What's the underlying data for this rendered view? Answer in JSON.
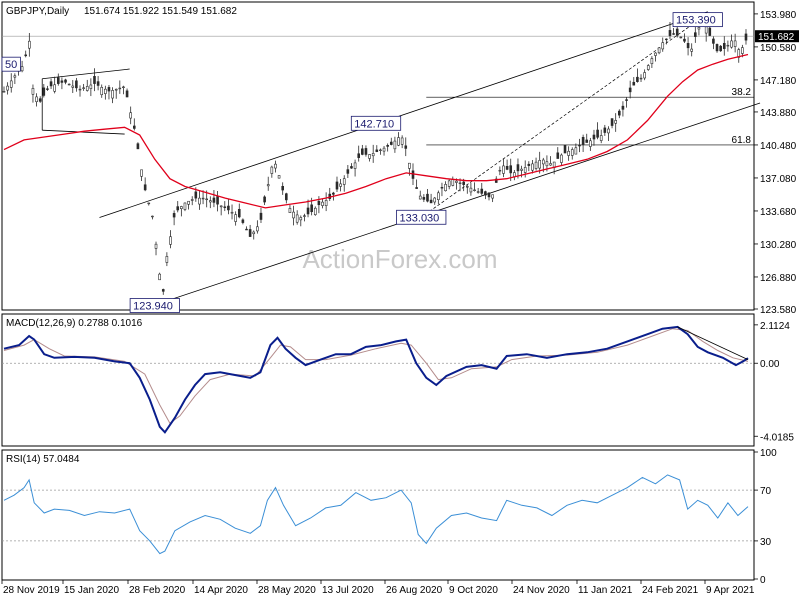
{
  "header": {
    "symbol": "GBPJPY,Daily",
    "ohlc": "151.674 151.922 151.549 151.682"
  },
  "watermark": "ActionForex.com",
  "colors": {
    "candle": "#2a2a2a",
    "sma": "#e0001b",
    "macd": "#0a1e8c",
    "signal": "#b48c8c",
    "rsi": "#3b8fd6",
    "grid": "#999999"
  },
  "chart_data": [
    {
      "type": "candlestick",
      "panel": "price",
      "ylim": [
        123.58,
        155.0
      ],
      "y_ticks": [
        "153.980",
        "150.580",
        "147.180",
        "143.880",
        "140.480",
        "137.080",
        "133.680",
        "130.280",
        "126.880",
        "123.580"
      ],
      "y_tick_values": [
        153.98,
        150.58,
        147.18,
        143.88,
        140.48,
        137.08,
        133.68,
        130.28,
        126.88,
        123.58
      ],
      "x_ticks": [
        "28 Nov 2019",
        "15 Jan 2020",
        "28 Feb 2020",
        "14 Apr 2020",
        "28 May 2020",
        "13 Jul 2020",
        "26 Aug 2020",
        "9 Oct 2020",
        "24 Nov 2020",
        "11 Jan 2021",
        "24 Feb 2021",
        "9 Apr 2021"
      ],
      "last_price": "151.682",
      "last_price_value": 151.682,
      "close_path": [
        [
          0,
          146.0
        ],
        [
          10,
          147.5
        ],
        [
          20,
          148.8
        ],
        [
          25,
          151.5
        ],
        [
          28,
          146.5
        ],
        [
          35,
          144.8
        ],
        [
          45,
          146.5
        ],
        [
          60,
          147.0
        ],
        [
          75,
          146.2
        ],
        [
          90,
          146.8
        ],
        [
          105,
          146.0
        ],
        [
          120,
          146.5
        ],
        [
          130,
          142.0
        ],
        [
          140,
          136.0
        ],
        [
          148,
          133.0
        ],
        [
          155,
          127.0
        ],
        [
          158,
          125.0
        ],
        [
          162,
          129.0
        ],
        [
          170,
          133.5
        ],
        [
          180,
          134.5
        ],
        [
          190,
          135.0
        ],
        [
          200,
          135.0
        ],
        [
          210,
          134.5
        ],
        [
          220,
          134.0
        ],
        [
          235,
          133.0
        ],
        [
          245,
          131.0
        ],
        [
          255,
          132.5
        ],
        [
          262,
          136.0
        ],
        [
          268,
          139.0
        ],
        [
          272,
          138.0
        ],
        [
          278,
          135.5
        ],
        [
          285,
          133.8
        ],
        [
          295,
          133.0
        ],
        [
          305,
          133.5
        ],
        [
          315,
          134.5
        ],
        [
          325,
          135.0
        ],
        [
          335,
          136.5
        ],
        [
          345,
          138.0
        ],
        [
          355,
          139.5
        ],
        [
          365,
          139.5
        ],
        [
          375,
          140.0
        ],
        [
          385,
          140.5
        ],
        [
          395,
          141.5
        ],
        [
          400,
          140.0
        ],
        [
          408,
          136.5
        ],
        [
          415,
          135.0
        ],
        [
          425,
          134.5
        ],
        [
          435,
          136.0
        ],
        [
          445,
          137.0
        ],
        [
          455,
          136.5
        ],
        [
          465,
          136.0
        ],
        [
          475,
          135.5
        ],
        [
          485,
          135.0
        ],
        [
          495,
          138.5
        ],
        [
          505,
          137.5
        ],
        [
          515,
          138.0
        ],
        [
          525,
          138.5
        ],
        [
          535,
          139.0
        ],
        [
          545,
          138.5
        ],
        [
          555,
          139.5
        ],
        [
          565,
          140.0
        ],
        [
          575,
          140.5
        ],
        [
          585,
          141.0
        ],
        [
          595,
          141.5
        ],
        [
          605,
          142.5
        ],
        [
          615,
          144.0
        ],
        [
          625,
          146.5
        ],
        [
          635,
          147.5
        ],
        [
          645,
          149.5
        ],
        [
          655,
          151.0
        ],
        [
          665,
          152.0
        ],
        [
          675,
          151.5
        ],
        [
          683,
          150.0
        ],
        [
          690,
          152.5
        ],
        [
          697,
          153.0
        ],
        [
          703,
          151.5
        ],
        [
          710,
          150.0
        ],
        [
          718,
          150.5
        ],
        [
          726,
          151.5
        ],
        [
          732,
          150.0
        ],
        [
          740,
          151.7
        ]
      ],
      "sma_path": [
        [
          0,
          140.0
        ],
        [
          20,
          141.0
        ],
        [
          40,
          141.3
        ],
        [
          60,
          141.6
        ],
        [
          80,
          141.9
        ],
        [
          100,
          142.1
        ],
        [
          120,
          142.3
        ],
        [
          135,
          141.5
        ],
        [
          150,
          139.0
        ],
        [
          165,
          137.0
        ],
        [
          180,
          136.2
        ],
        [
          200,
          135.6
        ],
        [
          220,
          135.0
        ],
        [
          240,
          134.5
        ],
        [
          260,
          134.0
        ],
        [
          280,
          134.3
        ],
        [
          300,
          134.6
        ],
        [
          320,
          135.0
        ],
        [
          340,
          135.5
        ],
        [
          360,
          136.2
        ],
        [
          380,
          137.0
        ],
        [
          400,
          137.6
        ],
        [
          420,
          137.3
        ],
        [
          440,
          137.0
        ],
        [
          460,
          136.8
        ],
        [
          480,
          136.8
        ],
        [
          500,
          137.0
        ],
        [
          520,
          137.5
        ],
        [
          540,
          138.0
        ],
        [
          560,
          138.5
        ],
        [
          580,
          139.0
        ],
        [
          600,
          139.8
        ],
        [
          620,
          141.0
        ],
        [
          640,
          143.0
        ],
        [
          660,
          145.5
        ],
        [
          675,
          147.0
        ],
        [
          690,
          148.2
        ],
        [
          705,
          148.8
        ],
        [
          720,
          149.3
        ],
        [
          740,
          149.8
        ]
      ],
      "labels": [
        {
          "text": "50",
          "x": 0,
          "y": 148.8
        },
        {
          "text": "142.710",
          "x": 370,
          "y": 142.71
        },
        {
          "text": "133.030",
          "x": 415,
          "y": 133.03
        },
        {
          "text": "123.940",
          "x": 150,
          "y": 123.94
        },
        {
          "text": "153.390",
          "x": 690,
          "y": 153.39
        }
      ],
      "fib_levels": [
        {
          "label": "38.2",
          "value": 145.4
        },
        {
          "label": "61.8",
          "value": 140.48
        }
      ]
    },
    {
      "type": "line",
      "panel": "macd",
      "title": "MACD(12,26,9) 0.2788 0.1016",
      "ylim": [
        -4.5,
        2.6
      ],
      "y_ticks": [
        "2.1124",
        "0.00",
        "-4.0185"
      ],
      "y_tick_values": [
        2.1124,
        0.0,
        -4.0185
      ],
      "series": [
        {
          "role": "macd",
          "points": [
            [
              0,
              0.8
            ],
            [
              15,
              1.0
            ],
            [
              25,
              1.5
            ],
            [
              30,
              1.3
            ],
            [
              40,
              0.5
            ],
            [
              50,
              0.3
            ],
            [
              70,
              0.35
            ],
            [
              90,
              0.3
            ],
            [
              110,
              0.1
            ],
            [
              125,
              0.0
            ],
            [
              135,
              -0.8
            ],
            [
              145,
              -2.0
            ],
            [
              155,
              -3.5
            ],
            [
              160,
              -3.8
            ],
            [
              170,
              -3.0
            ],
            [
              180,
              -2.0
            ],
            [
              190,
              -1.2
            ],
            [
              200,
              -0.6
            ],
            [
              215,
              -0.5
            ],
            [
              225,
              -0.6
            ],
            [
              245,
              -0.8
            ],
            [
              255,
              -0.5
            ],
            [
              265,
              1.0
            ],
            [
              272,
              1.4
            ],
            [
              280,
              0.8
            ],
            [
              290,
              0.3
            ],
            [
              300,
              -0.1
            ],
            [
              315,
              0.2
            ],
            [
              330,
              0.5
            ],
            [
              345,
              0.5
            ],
            [
              360,
              0.9
            ],
            [
              375,
              1.0
            ],
            [
              390,
              1.2
            ],
            [
              400,
              1.3
            ],
            [
              410,
              0.0
            ],
            [
              420,
              -0.8
            ],
            [
              430,
              -1.2
            ],
            [
              440,
              -0.7
            ],
            [
              460,
              -0.2
            ],
            [
              475,
              -0.1
            ],
            [
              490,
              -0.3
            ],
            [
              500,
              0.4
            ],
            [
              520,
              0.5
            ],
            [
              540,
              0.3
            ],
            [
              560,
              0.5
            ],
            [
              580,
              0.6
            ],
            [
              600,
              0.8
            ],
            [
              620,
              1.2
            ],
            [
              640,
              1.6
            ],
            [
              655,
              1.9
            ],
            [
              670,
              2.0
            ],
            [
              680,
              1.6
            ],
            [
              690,
              0.9
            ],
            [
              700,
              0.6
            ],
            [
              715,
              0.3
            ],
            [
              728,
              -0.1
            ],
            [
              735,
              0.1
            ],
            [
              740,
              0.28
            ]
          ]
        },
        {
          "role": "signal",
          "points": [
            [
              0,
              0.7
            ],
            [
              20,
              1.0
            ],
            [
              30,
              1.3
            ],
            [
              45,
              0.8
            ],
            [
              60,
              0.4
            ],
            [
              90,
              0.35
            ],
            [
              120,
              0.1
            ],
            [
              140,
              -0.6
            ],
            [
              155,
              -2.3
            ],
            [
              165,
              -3.3
            ],
            [
              175,
              -2.9
            ],
            [
              190,
              -1.8
            ],
            [
              205,
              -0.9
            ],
            [
              225,
              -0.6
            ],
            [
              250,
              -0.7
            ],
            [
              265,
              0.3
            ],
            [
              275,
              1.0
            ],
            [
              285,
              0.9
            ],
            [
              300,
              0.2
            ],
            [
              320,
              0.2
            ],
            [
              345,
              0.45
            ],
            [
              370,
              0.8
            ],
            [
              395,
              1.1
            ],
            [
              405,
              1.0
            ],
            [
              420,
              0.0
            ],
            [
              432,
              -0.9
            ],
            [
              445,
              -0.8
            ],
            [
              465,
              -0.3
            ],
            [
              490,
              -0.2
            ],
            [
              505,
              0.2
            ],
            [
              530,
              0.4
            ],
            [
              560,
              0.45
            ],
            [
              590,
              0.6
            ],
            [
              620,
              1.0
            ],
            [
              645,
              1.5
            ],
            [
              665,
              1.9
            ],
            [
              680,
              1.8
            ],
            [
              695,
              1.2
            ],
            [
              710,
              0.7
            ],
            [
              725,
              0.3
            ],
            [
              740,
              0.1
            ]
          ]
        }
      ]
    },
    {
      "type": "line",
      "panel": "rsi",
      "title": "RSI(14) 57.0484",
      "ylim": [
        0,
        100
      ],
      "y_ticks": [
        "100",
        "70",
        "30",
        "0"
      ],
      "y_tick_values": [
        100,
        70,
        30,
        0
      ],
      "series": [
        {
          "role": "rsi",
          "points": [
            [
              0,
              62
            ],
            [
              10,
              66
            ],
            [
              20,
              72
            ],
            [
              25,
              78
            ],
            [
              30,
              60
            ],
            [
              40,
              52
            ],
            [
              50,
              55
            ],
            [
              65,
              54
            ],
            [
              80,
              50
            ],
            [
              95,
              53
            ],
            [
              110,
              52
            ],
            [
              125,
              55
            ],
            [
              135,
              38
            ],
            [
              145,
              30
            ],
            [
              155,
              20
            ],
            [
              160,
              22
            ],
            [
              170,
              38
            ],
            [
              185,
              45
            ],
            [
              200,
              50
            ],
            [
              215,
              47
            ],
            [
              230,
              40
            ],
            [
              245,
              36
            ],
            [
              255,
              42
            ],
            [
              262,
              62
            ],
            [
              270,
              72
            ],
            [
              278,
              58
            ],
            [
              290,
              42
            ],
            [
              305,
              48
            ],
            [
              320,
              56
            ],
            [
              335,
              58
            ],
            [
              350,
              68
            ],
            [
              365,
              62
            ],
            [
              380,
              64
            ],
            [
              395,
              70
            ],
            [
              405,
              60
            ],
            [
              412,
              35
            ],
            [
              420,
              28
            ],
            [
              430,
              40
            ],
            [
              445,
              50
            ],
            [
              460,
              52
            ],
            [
              475,
              48
            ],
            [
              490,
              46
            ],
            [
              500,
              62
            ],
            [
              515,
              58
            ],
            [
              530,
              56
            ],
            [
              545,
              50
            ],
            [
              560,
              58
            ],
            [
              575,
              62
            ],
            [
              590,
              60
            ],
            [
              605,
              66
            ],
            [
              620,
              72
            ],
            [
              635,
              80
            ],
            [
              648,
              75
            ],
            [
              660,
              82
            ],
            [
              672,
              78
            ],
            [
              680,
              55
            ],
            [
              690,
              62
            ],
            [
              700,
              58
            ],
            [
              710,
              48
            ],
            [
              720,
              60
            ],
            [
              730,
              50
            ],
            [
              740,
              57
            ]
          ]
        }
      ]
    }
  ]
}
